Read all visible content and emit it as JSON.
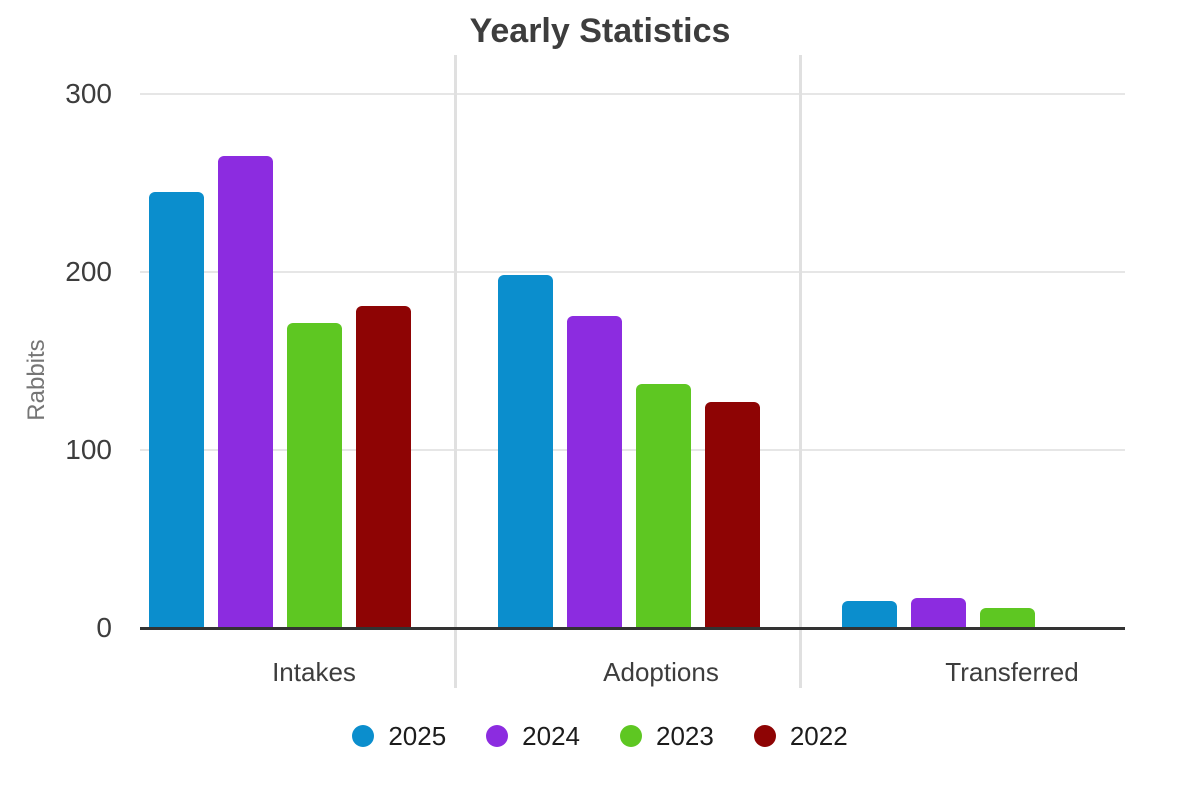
{
  "chart_data": {
    "type": "bar",
    "title": "Yearly Statistics",
    "ylabel": "Rabbits",
    "xlabel": "",
    "categories": [
      "Intakes",
      "Adoptions",
      "Transferred"
    ],
    "series": [
      {
        "name": "2025",
        "color": "#0b8ecd",
        "values": [
          245,
          198,
          15
        ]
      },
      {
        "name": "2024",
        "color": "#8c2ce0",
        "values": [
          265,
          175,
          17
        ]
      },
      {
        "name": "2023",
        "color": "#5ec722",
        "values": [
          171,
          137,
          11
        ]
      },
      {
        "name": "2022",
        "color": "#8e0404",
        "values": [
          181,
          127,
          0
        ]
      }
    ],
    "yticks": [
      0,
      100,
      200,
      300
    ],
    "ylim": [
      0,
      300
    ],
    "grid": true,
    "legend_position": "bottom"
  },
  "colors": {
    "background": "#ffffff",
    "gridline": "#e6e6e6",
    "category_divider": "#e0e0e0",
    "axis_line": "#333333",
    "title_text": "#3d3d3d",
    "tick_text": "#3d3d3d",
    "category_text": "#3d3d3d",
    "ylabel_text": "#757575",
    "legend_text": "#1c1c1c"
  }
}
